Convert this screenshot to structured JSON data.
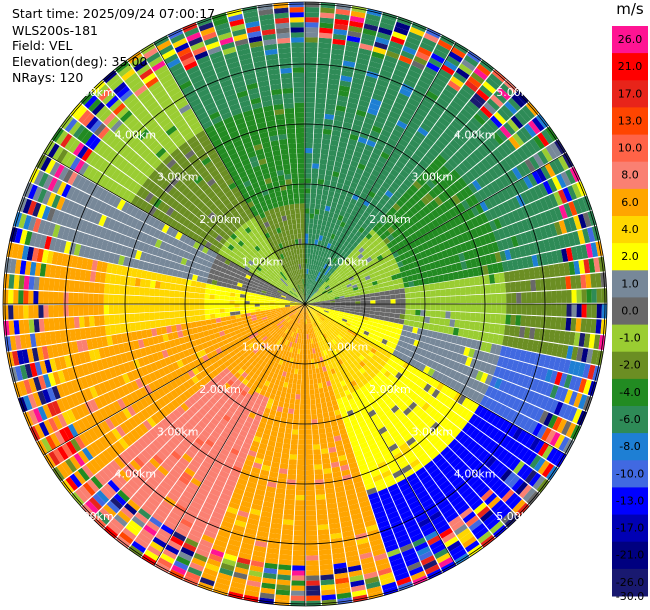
{
  "header": {
    "start_time": "Start time: 2025/09/24 07:00:17",
    "site": "WLS200s-181",
    "field": "Field: VEL",
    "elevation": "Elevation(deg): 35.00",
    "nrays": "NRays: 120"
  },
  "colorbar": {
    "unit": "m/s",
    "bins": [
      {
        "label": "26.0",
        "color": "#ff1493"
      },
      {
        "label": "21.0",
        "color": "#ff0000"
      },
      {
        "label": "17.0",
        "color": "#e8241a"
      },
      {
        "label": "13.0",
        "color": "#ff4500"
      },
      {
        "label": "10.0",
        "color": "#ff6347"
      },
      {
        "label": "8.0",
        "color": "#fa8072"
      },
      {
        "label": "6.0",
        "color": "#ffa500"
      },
      {
        "label": "4.0",
        "color": "#ffd700"
      },
      {
        "label": "2.0",
        "color": "#ffff00"
      },
      {
        "label": "1.0",
        "color": "#778899"
      },
      {
        "label": "0.0",
        "color": "#696969"
      },
      {
        "label": "-1.0",
        "color": "#9acd32"
      },
      {
        "label": "-2.0",
        "color": "#6b8e23"
      },
      {
        "label": "-4.0",
        "color": "#228b22"
      },
      {
        "label": "-6.0",
        "color": "#2e8b57"
      },
      {
        "label": "-8.0",
        "color": "#1e7fd4"
      },
      {
        "label": "-10.0",
        "color": "#4169e1"
      },
      {
        "label": "-13.0",
        "color": "#0000ff"
      },
      {
        "label": "-17.0",
        "color": "#0000b4"
      },
      {
        "label": "-21.0",
        "color": "#000080"
      },
      {
        "label": "-26.0",
        "color": "#191970"
      }
    ],
    "bottom_label": "-30.0"
  },
  "chart_data": {
    "type": "heatmap",
    "title": "",
    "field": "VEL",
    "nrays": 120,
    "range_rings": [
      {
        "label": "1.00km",
        "km": 1
      },
      {
        "label": "2.00km",
        "km": 2
      },
      {
        "label": "3.00km",
        "km": 3
      },
      {
        "label": "4.00km",
        "km": 4
      },
      {
        "label": "5.00km",
        "km": 5
      }
    ],
    "max_range_km": 5.0,
    "regions": [
      {
        "from_az": 0,
        "to_az": 40,
        "inner": -6.0,
        "mid": -6.0,
        "outer": -6.0
      },
      {
        "from_az": 40,
        "to_az": 80,
        "inner": -1.0,
        "mid": -4.0,
        "outer": -6.0
      },
      {
        "from_az": 80,
        "to_az": 100,
        "inner": 0.0,
        "mid": -1.0,
        "outer": -2.0
      },
      {
        "from_az": 100,
        "to_az": 120,
        "inner": 2.0,
        "mid": 1.0,
        "outer": -10.0
      },
      {
        "from_az": 120,
        "to_az": 160,
        "inner": 4.0,
        "mid": 2.0,
        "outer": -13.0
      },
      {
        "from_az": 160,
        "to_az": 200,
        "inner": 6.0,
        "mid": 6.0,
        "outer": 6.0
      },
      {
        "from_az": 200,
        "to_az": 230,
        "inner": 6.0,
        "mid": 8.0,
        "outer": 8.0
      },
      {
        "from_az": 230,
        "to_az": 260,
        "inner": 6.0,
        "mid": 6.0,
        "outer": 6.0
      },
      {
        "from_az": 260,
        "to_az": 280,
        "inner": 2.0,
        "mid": 4.0,
        "outer": 6.0
      },
      {
        "from_az": 280,
        "to_az": 300,
        "inner": 0.0,
        "mid": 1.0,
        "outer": 1.0
      },
      {
        "from_az": 300,
        "to_az": 330,
        "inner": -1.0,
        "mid": -2.0,
        "outer": -1.0
      },
      {
        "from_az": 330,
        "to_az": 360,
        "inner": -2.0,
        "mid": -4.0,
        "outer": -6.0
      }
    ]
  }
}
